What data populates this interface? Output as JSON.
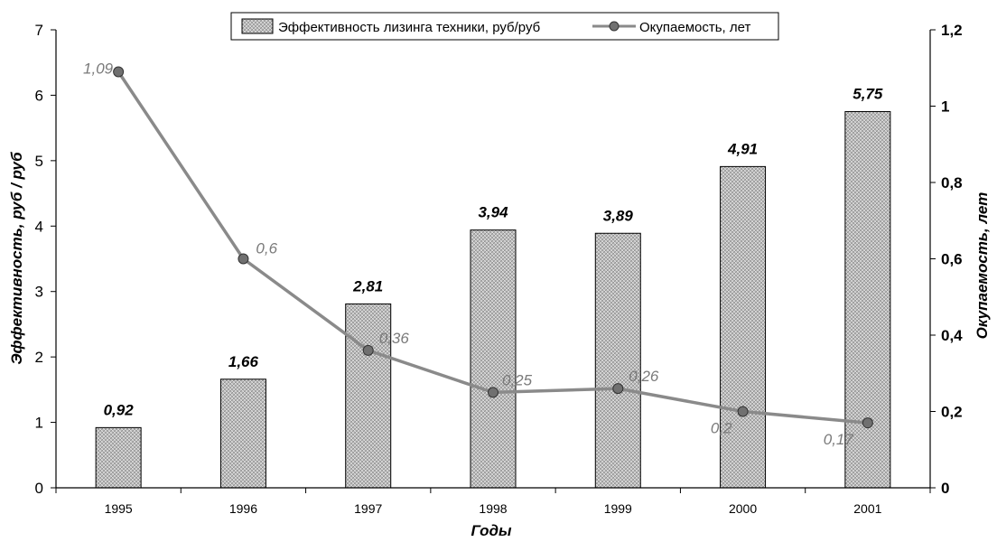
{
  "chart_data": {
    "type": "bar",
    "categories": [
      "1995",
      "1996",
      "1997",
      "1998",
      "1999",
      "2000",
      "2001"
    ],
    "series": [
      {
        "name": "Эффективность лизинга техники, руб/руб",
        "type": "bar",
        "axis": "left",
        "values": [
          0.92,
          1.66,
          2.81,
          3.94,
          3.89,
          4.91,
          5.75
        ],
        "labels": [
          "0,92",
          "1,66",
          "2,81",
          "3,94",
          "3,89",
          "4,91",
          "5,75"
        ]
      },
      {
        "name": "Окупаемость, лет",
        "type": "line",
        "axis": "right",
        "values": [
          1.09,
          0.6,
          0.36,
          0.25,
          0.26,
          0.2,
          0.17
        ],
        "labels": [
          "1,09",
          "0,6",
          "0,36",
          "0,25",
          "0,26",
          "0,2",
          "0,17"
        ]
      }
    ],
    "xlabel": "Годы",
    "ylabel": "Эффективность, руб / руб",
    "y2label": "Окупаемость, лет",
    "ylim": [
      0,
      7
    ],
    "y2lim": [
      0,
      1.2
    ],
    "yticks": [
      "0",
      "1",
      "2",
      "3",
      "4",
      "5",
      "6",
      "7"
    ],
    "y2ticks": [
      "0",
      "0,2",
      "0,4",
      "0,6",
      "0,8",
      "1",
      "1,2"
    ],
    "grid": false,
    "legend_position": "top-center",
    "colors": {
      "bar_fill": "#c4c4c4",
      "bar_stroke": "#000000",
      "line": "#8a8a8a",
      "marker": "#707070",
      "line_label": "#7a7a7a"
    }
  }
}
